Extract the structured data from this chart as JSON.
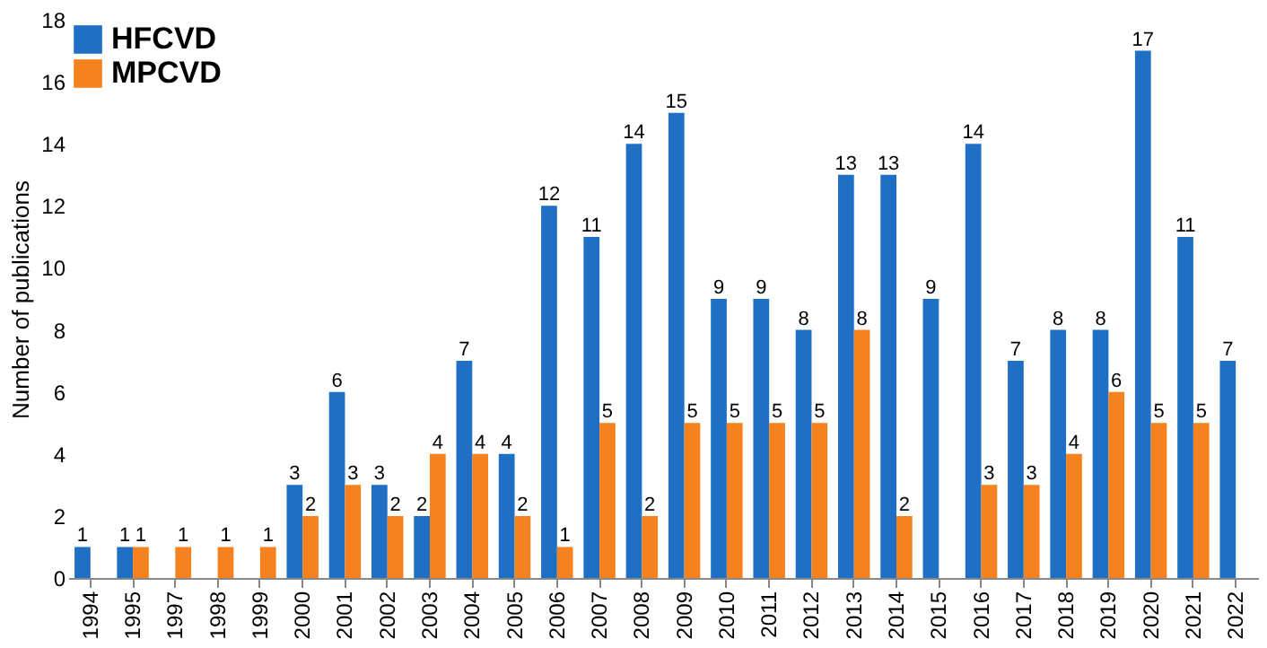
{
  "chart_data": {
    "type": "bar",
    "ylabel": "Number of publications",
    "categories": [
      "1994",
      "1995",
      "1997",
      "1998",
      "1999",
      "2000",
      "2001",
      "2002",
      "2003",
      "2004",
      "2005",
      "2006",
      "2007",
      "2008",
      "2009",
      "2010",
      "2011",
      "2012",
      "2013",
      "2014",
      "2015",
      "2016",
      "2017",
      "2018",
      "2019",
      "2020",
      "2021",
      "2022"
    ],
    "series": [
      {
        "name": "HFCVD",
        "color": "#1f6fc5",
        "values": [
          1,
          1,
          null,
          null,
          null,
          3,
          6,
          3,
          2,
          7,
          4,
          12,
          11,
          14,
          15,
          9,
          9,
          8,
          13,
          13,
          9,
          14,
          7,
          8,
          8,
          17,
          11,
          7
        ]
      },
      {
        "name": "MPCVD",
        "color": "#f5821f",
        "values": [
          null,
          1,
          1,
          1,
          1,
          2,
          3,
          2,
          4,
          4,
          2,
          1,
          5,
          2,
          5,
          5,
          5,
          5,
          8,
          2,
          null,
          3,
          3,
          4,
          6,
          5,
          5,
          null
        ]
      }
    ],
    "ylim": [
      0,
      18
    ],
    "yticks": [
      0,
      2,
      4,
      6,
      8,
      10,
      12,
      14,
      16,
      18
    ],
    "data_labels": true,
    "legend": "top left",
    "grid": false
  }
}
